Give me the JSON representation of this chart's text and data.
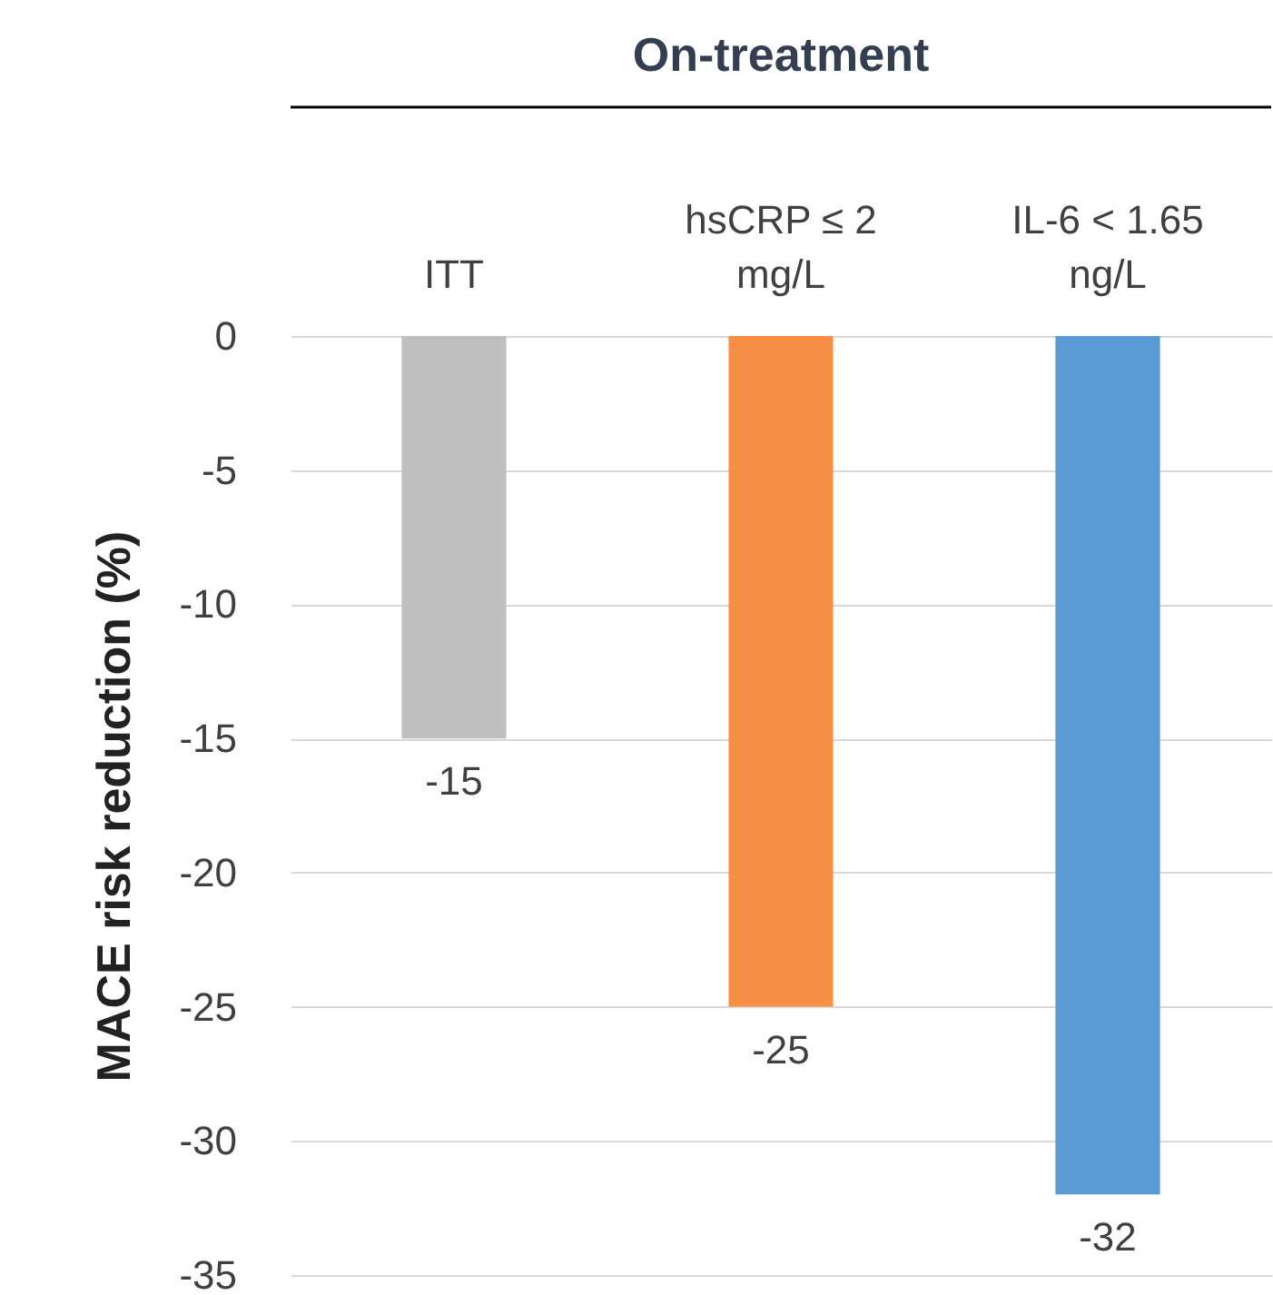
{
  "chart_data": {
    "type": "bar",
    "title": "On-treatment",
    "ylabel": "MACE risk reduction (%)",
    "categories": [
      "ITT",
      "hsCRP ≤ 2 mg/L",
      "IL-6 < 1.65 ng/L"
    ],
    "values": [
      -15,
      -25,
      -32
    ],
    "colors": [
      "#bfbfbf",
      "#f79046",
      "#5b9bd5"
    ],
    "ylim": [
      -35,
      0
    ],
    "yticks": [
      -35,
      -30,
      -25,
      -20,
      -15,
      -10,
      -5,
      0
    ],
    "grid": true,
    "data_labels": true
  }
}
